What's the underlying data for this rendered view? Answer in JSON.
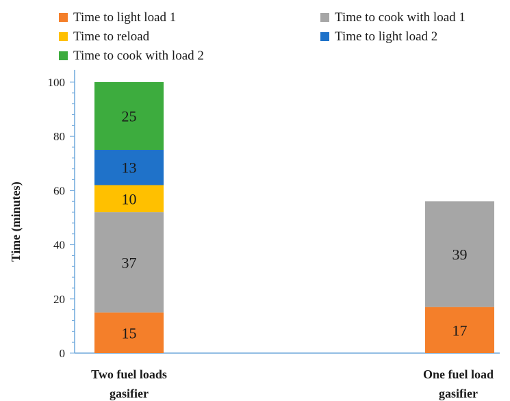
{
  "chart_data": {
    "type": "bar",
    "stacked": true,
    "title": "",
    "xlabel": "",
    "ylabel": "Time (minutes)",
    "ylim": [
      0,
      100
    ],
    "yticks": [
      0,
      20,
      40,
      60,
      80,
      100
    ],
    "grid": false,
    "legend_position": "top",
    "categories": [
      [
        "Two fuel loads",
        "gasifier"
      ],
      [
        "One fuel load",
        "gasifier"
      ]
    ],
    "series": [
      {
        "name": "Time to light load 1",
        "color": "#f47f2a",
        "values": [
          15,
          17
        ]
      },
      {
        "name": "Time to cook with load 1",
        "color": "#a6a6a6",
        "values": [
          37,
          39
        ]
      },
      {
        "name": "Time to reload",
        "color": "#ffc000",
        "values": [
          10,
          null
        ]
      },
      {
        "name": "Time to light load 2",
        "color": "#1f72c9",
        "values": [
          13,
          null
        ]
      },
      {
        "name": "Time to cook with load 2",
        "color": "#3dac3e",
        "values": [
          25,
          null
        ]
      }
    ],
    "totals": [
      100,
      56
    ],
    "axis_color": "#6fa8dc"
  }
}
